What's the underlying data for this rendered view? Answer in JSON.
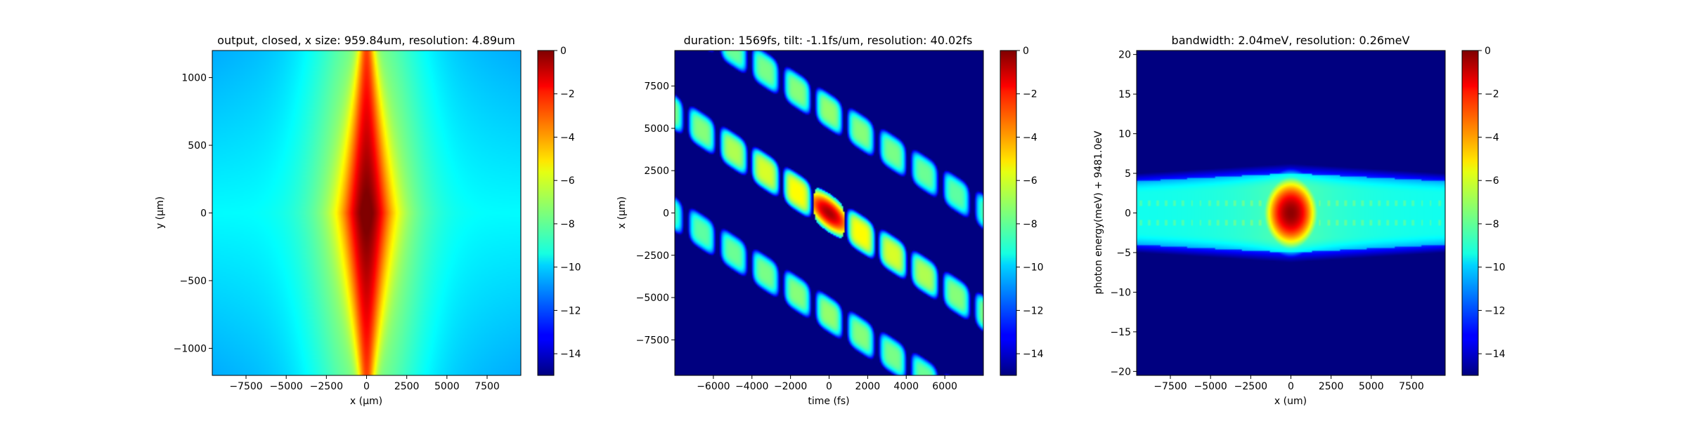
{
  "figure": {
    "background": "#ffffff"
  },
  "chart_data": [
    {
      "type": "heatmap",
      "title": "output, closed, x size: 959.84um, resolution: 4.89um",
      "xlabel": "x (μm)",
      "ylabel": "y (μm)",
      "xlim": [
        -9600,
        9600
      ],
      "ylim": [
        -1200,
        1200
      ],
      "xticks": [
        -7500,
        -5000,
        -2500,
        0,
        2500,
        5000,
        7500
      ],
      "xtick_labels": [
        "−7500",
        "−5000",
        "−2500",
        "0",
        "2500",
        "5000",
        "7500"
      ],
      "yticks": [
        -1000,
        -500,
        0,
        500,
        1000
      ],
      "ytick_labels": [
        "−1000",
        "−500",
        "0",
        "500",
        "1000"
      ],
      "colormap": "jet",
      "colorbar": {
        "range": [
          -15,
          0
        ],
        "ticks": [
          0,
          -2,
          -4,
          -6,
          -8,
          -10,
          -12,
          -14
        ],
        "tick_labels": [
          "0",
          "−2",
          "−4",
          "−6",
          "−8",
          "−10",
          "−12",
          "−14"
        ]
      },
      "description_of_field": "bright vertical spindle centered at x=0, peak 0 at y≈0, decaying to about −10 at the corners"
    },
    {
      "type": "heatmap",
      "title": "duration: 1569fs, tilt: -1.1fs/um, resolution: 40.02fs",
      "xlabel": "time (fs)",
      "ylabel": "x (μm)",
      "xlim": [
        -8000,
        8000
      ],
      "ylim": [
        -9600,
        9600
      ],
      "xticks": [
        -6000,
        -4000,
        -2000,
        0,
        2000,
        4000,
        6000
      ],
      "xtick_labels": [
        "−6000",
        "−4000",
        "−2000",
        "0",
        "2000",
        "4000",
        "6000"
      ],
      "yticks": [
        -7500,
        -5000,
        -2500,
        0,
        2500,
        5000,
        7500
      ],
      "ytick_labels": [
        "−7500",
        "−5000",
        "−2500",
        "0",
        "2500",
        "5000",
        "7500"
      ],
      "colormap": "jet",
      "colorbar": {
        "range": [
          -15,
          0
        ],
        "ticks": [
          0,
          -2,
          -4,
          -6,
          -8,
          -10,
          -12,
          -14
        ],
        "tick_labels": [
          "0",
          "−2",
          "−4",
          "−6",
          "−8",
          "−10",
          "−12",
          "−14"
        ]
      },
      "tilt_fs_per_um": -1.1,
      "pulse_period_fs": 1650,
      "band_offsets_um": [
        -6000,
        0,
        6000
      ],
      "description_of_field": "three diagonal bands of rounded pulses on a −15 background; central band has a bright red main pulse at t≈0"
    },
    {
      "type": "heatmap",
      "title": "bandwidth: 2.04meV, resolution: 0.26meV",
      "xlabel": "x (um)",
      "ylabel": "photon energy(meV) + 9481.0eV",
      "xlim": [
        -9600,
        9600
      ],
      "ylim": [
        -20.5,
        20.5
      ],
      "xticks": [
        -7500,
        -5000,
        -2500,
        0,
        2500,
        5000,
        7500
      ],
      "xtick_labels": [
        "−7500",
        "−5000",
        "−2500",
        "0",
        "2500",
        "5000",
        "7500"
      ],
      "yticks": [
        -20,
        -15,
        -10,
        -5,
        0,
        5,
        10,
        15,
        20
      ],
      "ytick_labels": [
        "−20",
        "−15",
        "−10",
        "−5",
        "0",
        "5",
        "10",
        "15",
        "20"
      ],
      "colormap": "jet",
      "colorbar": {
        "range": [
          -15,
          0
        ],
        "ticks": [
          0,
          -2,
          -4,
          -6,
          -8,
          -10,
          -12,
          -14
        ],
        "tick_labels": [
          "0",
          "−2",
          "−4",
          "−6",
          "−8",
          "−10",
          "−12",
          "−14"
        ]
      },
      "description_of_field": "horizontal cyan band from about −5 to +5 meV across all x, red spot at x=0, E=0, background −15"
    }
  ]
}
